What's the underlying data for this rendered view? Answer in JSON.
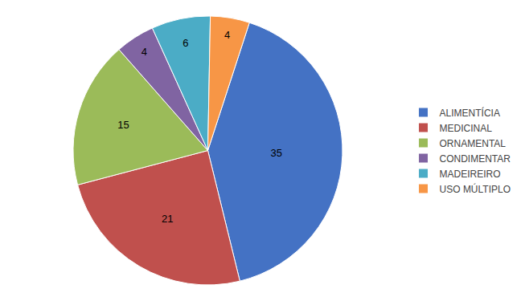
{
  "chart_data": {
    "type": "pie",
    "categories": [
      "ALIMENTÍCIA",
      "MEDICINAL",
      "ORNAMENTAL",
      "CONDIMENTAR",
      "MADEIREIRO",
      "USO MÚLTIPLO"
    ],
    "values": [
      35,
      21,
      15,
      4,
      6,
      4
    ],
    "colors": [
      "#4472C4",
      "#C0504D",
      "#9BBB59",
      "#8064A2",
      "#4BACC6",
      "#F79646"
    ],
    "data_labels": true,
    "legend": "right"
  }
}
